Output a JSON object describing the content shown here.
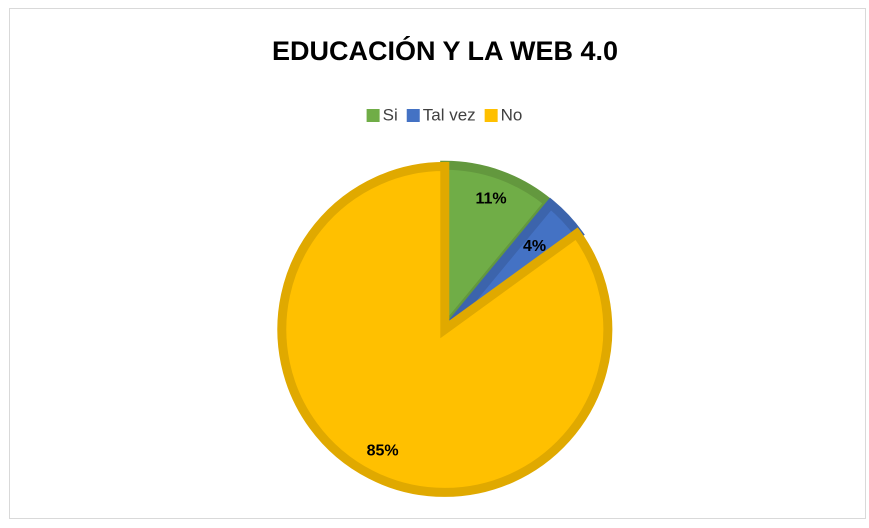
{
  "chart_data": {
    "type": "pie",
    "title": "EDUCACIÓN Y LA WEB 4.0",
    "categories": [
      "Si",
      "Tal vez",
      "No"
    ],
    "values": [
      11,
      4,
      85
    ],
    "value_labels": [
      "11%",
      "4%",
      "85%"
    ],
    "colors": [
      "#70ad47",
      "#4472c4",
      "#ffc000"
    ],
    "legend": "top"
  }
}
